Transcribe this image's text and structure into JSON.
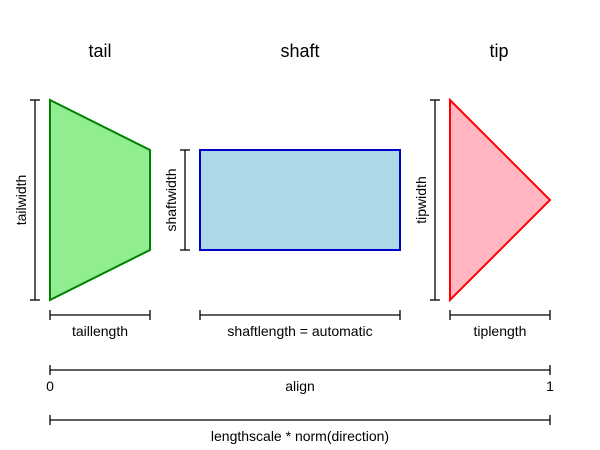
{
  "titles": {
    "tail": "tail",
    "shaft": "shaft",
    "tip": "tip"
  },
  "labels": {
    "tailwidth": "tailwidth",
    "shaftwidth": "shaftwidth",
    "tipwidth": "tipwidth",
    "taillength": "taillength",
    "shaftlength": "shaftlength = automatic",
    "tiplength": "tiplength",
    "align": "align",
    "align_start": "0",
    "align_end": "1",
    "total": "lengthscale * norm(direction)"
  },
  "colors": {
    "tail_fill": "#90ee90",
    "tail_stroke": "#008000",
    "shaft_fill": "#add8e6",
    "shaft_stroke": "#0000cd",
    "tip_fill": "#ffb6c1",
    "tip_stroke": "#ff0000"
  }
}
